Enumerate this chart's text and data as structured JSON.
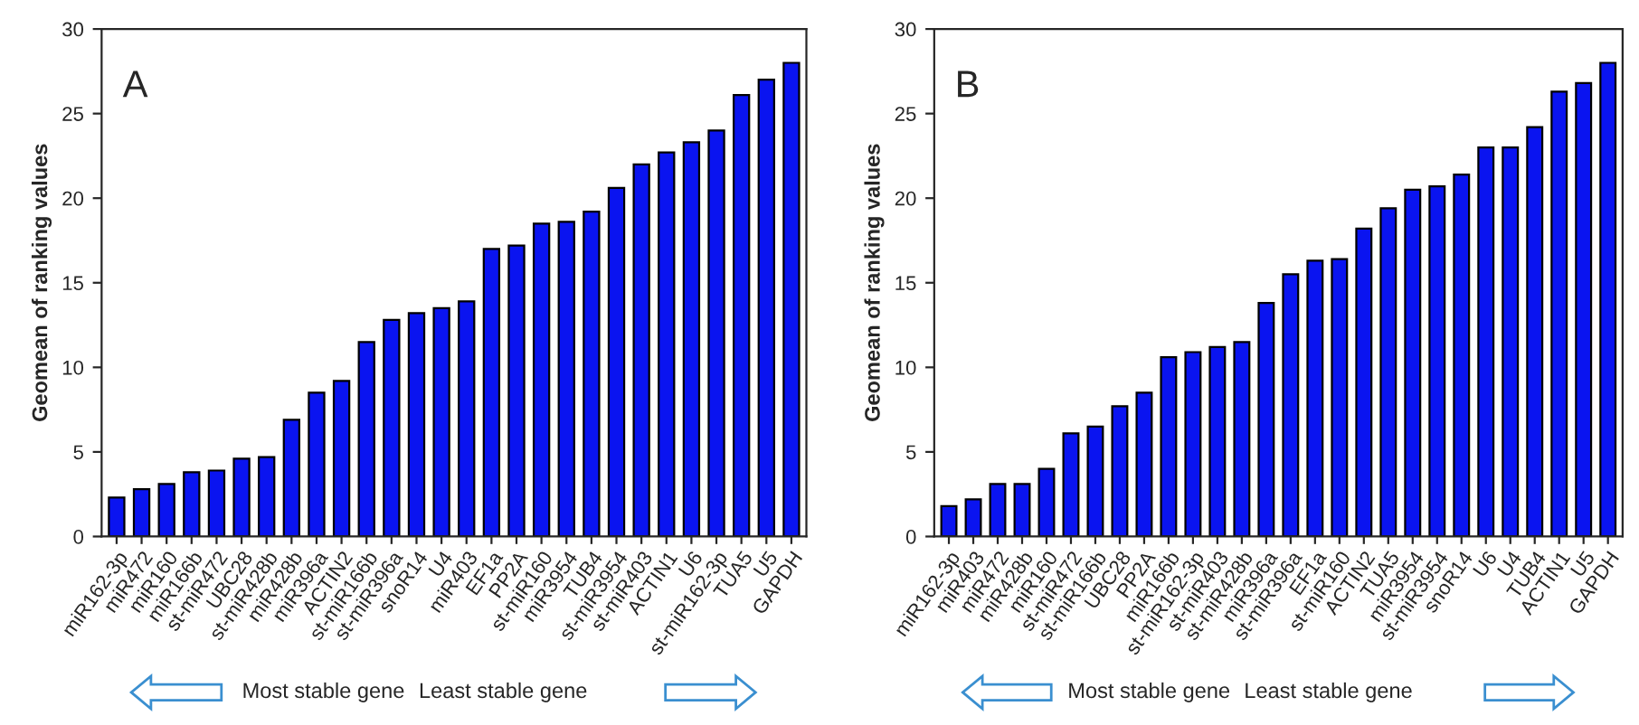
{
  "chart_data": [
    {
      "type": "bar",
      "ylabel": "Geomean of ranking values",
      "ylim": [
        0,
        30
      ],
      "yticks": [
        0,
        5,
        10,
        15,
        20,
        25,
        30
      ],
      "grid": false,
      "color": "#0a14f0",
      "categories": [
        "miR162-3p",
        "miR472",
        "miR160",
        "miR166b",
        "st-miR472",
        "UBC28",
        "st-miR428b",
        "miR428b",
        "miR396a",
        "ACTIN2",
        "st-miR166b",
        "st-miR396a",
        "snoR14",
        "U4",
        "miR403",
        "EF1a",
        "PP2A",
        "st-miR160",
        "miR3954",
        "TUB4",
        "st-miR3954",
        "st-miR403",
        "ACTIN1",
        "U6",
        "st-miR162-3p",
        "TUA5",
        "U5",
        "GAPDH"
      ],
      "values": [
        2.3,
        2.8,
        3.1,
        3.8,
        3.9,
        4.6,
        4.7,
        6.9,
        8.5,
        9.2,
        11.5,
        12.8,
        13.2,
        13.5,
        13.9,
        17.0,
        17.2,
        18.5,
        18.6,
        19.2,
        20.6,
        22.0,
        22.7,
        23.3,
        24.0,
        26.1,
        27.0,
        28.0
      ],
      "annotations": [
        "A",
        "Most stable gene",
        "Least stable gene"
      ]
    },
    {
      "type": "bar",
      "ylabel": "Geomean of ranking values",
      "ylim": [
        0,
        30
      ],
      "yticks": [
        0,
        5,
        10,
        15,
        20,
        25,
        30
      ],
      "grid": false,
      "color": "#0a14f0",
      "categories": [
        "miR162-3p",
        "miR403",
        "miR472",
        "miR428b",
        "miR160",
        "st-miR472",
        "st-miR166b",
        "UBC28",
        "PP2A",
        "miR166b",
        "st-miR162-3p",
        "st-miR403",
        "st-miR428b",
        "miR396a",
        "st-miR396a",
        "EF1a",
        "st-miR160",
        "ACTIN2",
        "TUA5",
        "miR3954",
        "st-miR3954",
        "snoR14",
        "U6",
        "U4",
        "TUB4",
        "ACTIN1",
        "U5",
        "GAPDH"
      ],
      "values": [
        1.8,
        2.2,
        3.1,
        3.1,
        4.0,
        6.1,
        6.5,
        7.7,
        8.5,
        10.6,
        10.9,
        11.2,
        11.5,
        13.8,
        15.5,
        16.3,
        16.4,
        18.2,
        19.4,
        20.5,
        20.7,
        21.4,
        23.0,
        23.0,
        24.2,
        26.3,
        26.8,
        28.0
      ],
      "annotations": [
        "B",
        "Most stable gene",
        "Least stable gene"
      ]
    }
  ]
}
